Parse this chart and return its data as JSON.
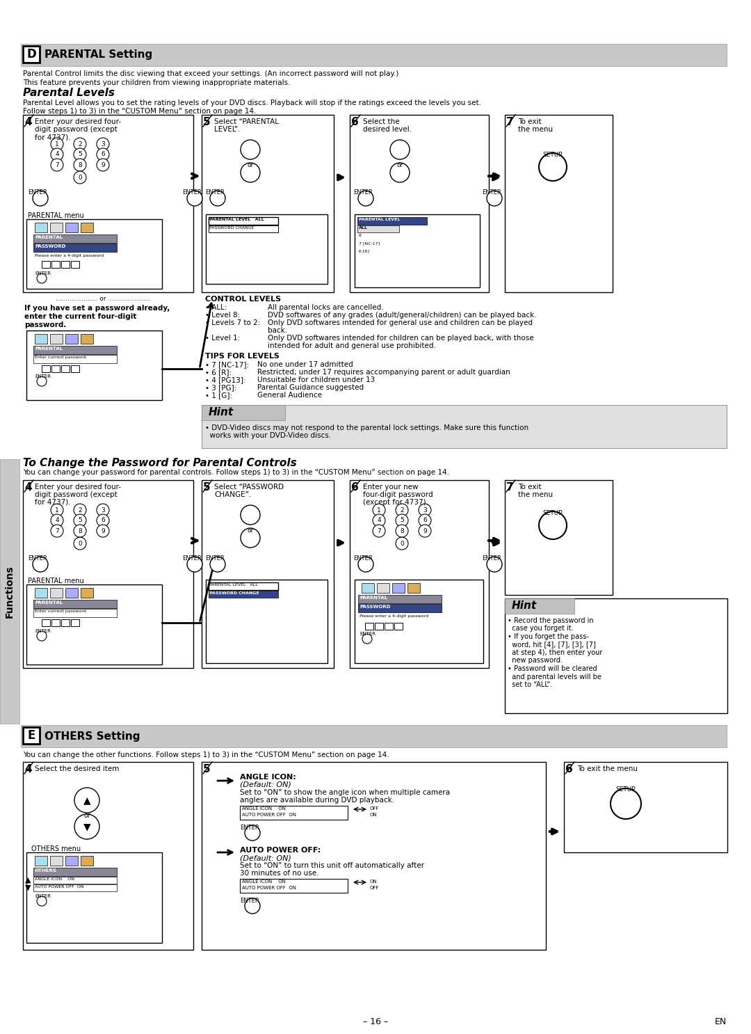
{
  "page_bg": "#ffffff",
  "header_bg": "#c8c8c8",
  "hint_bg": "#e0e0e0",
  "title_d": "PARENTAL Setting",
  "title_d_letter": "D",
  "title_e": "OTHERS Setting",
  "title_e_letter": "E",
  "parental_levels_title": "Parental Levels",
  "password_section_title": "To Change the Password for Parental Controls",
  "body_text_1": "Parental Control limits the disc viewing that exceed your settings. (An incorrect password will not play.)",
  "body_text_2": "This feature prevents your children from viewing inappropriate materials.",
  "parental_level_desc": "Parental Level allows you to set the rating levels of your DVD discs. Playback will stop if the ratings exceed the levels you set.",
  "follow_steps": "Follow steps 1) to 3) in the “CUSTOM Menu” section on page 14.",
  "control_levels_title": "CONTROL LEVELS",
  "tips_title": "TIPS FOR LEVELS",
  "hint_title": "Hint",
  "hint_text1": "• DVD-Video discs may not respond to the parental lock settings. Make sure this function",
  "hint_text2": "  works with your DVD-Video discs.",
  "hint2_title": "Hint",
  "hint2_b1": "• Record the password in",
  "hint2_b1b": "  case you forget it.",
  "hint2_b2": "• If you forget the pass-",
  "hint2_b2b": "  word, hit [4], [7], [3], [7]",
  "hint2_b2c": "  at step 4), then enter your",
  "hint2_b2d": "  new password.",
  "hint2_b3": "• Password will be cleared",
  "hint2_b3b": "  and parental levels will be",
  "hint2_b3c": "  set to “ALL”.",
  "others_desc": "You can change the other functions. Follow steps 1) to 3) in the “CUSTOM Menu” section on page 14.",
  "password_desc": "You can change your password for parental controls. Follow steps 1) to 3) in the “CUSTOM Menu” section on page 14.",
  "functions_label": "Functions",
  "page_number": "– 16 –",
  "en_label": "EN"
}
